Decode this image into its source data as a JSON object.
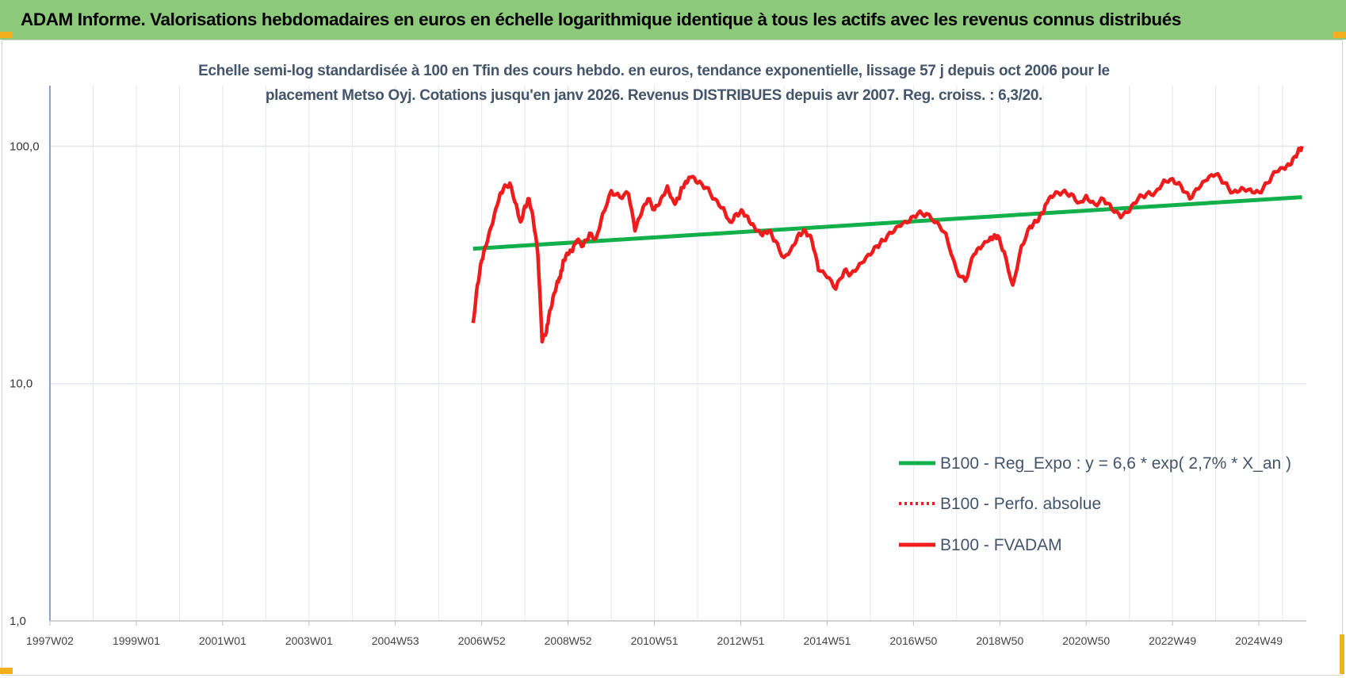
{
  "banner": {
    "title": "ADAM Informe. Valorisations hebdomadaires en euros en échelle logarithmique identique à tous les actifs avec les revenus connus distribués"
  },
  "colors": {
    "banner_bg": "#8dc97a",
    "corner_marks": "#f2b01e",
    "fvadam": "#ee1c1c",
    "regression": "#12b04a",
    "perfo": "#ee1c1c",
    "axis": "#4472c4",
    "grid": "#e3e7ee"
  },
  "chart_data": {
    "type": "line",
    "title_lines": [
      "Echelle semi-log standardisée à 100 en Tfin des cours hebdo. en euros, tendance exponentielle, lissage 57 j depuis oct 2006 pour le",
      "placement Metso Oyj. Cotations jusqu'en janv 2026. Revenus DISTRIBUES depuis avr 2007. Reg. croiss. : 6,3/20."
    ],
    "y_scale": "log",
    "ylim": [
      1,
      180
    ],
    "y_ticks": [
      {
        "value": 1,
        "label": "1,0"
      },
      {
        "value": 10,
        "label": "10,0"
      },
      {
        "value": 100,
        "label": "100,0"
      }
    ],
    "xlim": [
      1997.0,
      2026.1
    ],
    "x_ticks": [
      {
        "value": 1997.0,
        "label": "1997W02"
      },
      {
        "value": 1999.0,
        "label": "1999W01"
      },
      {
        "value": 2001.0,
        "label": "2001W01"
      },
      {
        "value": 2003.0,
        "label": "2003W01"
      },
      {
        "value": 2005.0,
        "label": "2004W53"
      },
      {
        "value": 2007.0,
        "label": "2006W52"
      },
      {
        "value": 2009.0,
        "label": "2008W52"
      },
      {
        "value": 2011.0,
        "label": "2010W51"
      },
      {
        "value": 2013.0,
        "label": "2012W51"
      },
      {
        "value": 2015.0,
        "label": "2014W51"
      },
      {
        "value": 2017.0,
        "label": "2016W50"
      },
      {
        "value": 2019.0,
        "label": "2018W50"
      },
      {
        "value": 2021.0,
        "label": "2020W50"
      },
      {
        "value": 2023.0,
        "label": "2022W49"
      },
      {
        "value": 2025.0,
        "label": "2024W49"
      }
    ],
    "grid": true,
    "legend_position": "right-middle",
    "legend": [
      {
        "name": "B100 - Reg_Expo : y = 6,6 * exp( 2,7% *  X_an )",
        "style": "solid-green"
      },
      {
        "name": "B100 - Perfo. absolue",
        "style": "dotted-red"
      },
      {
        "name": "B100 - FVADAM",
        "style": "solid-red"
      }
    ],
    "series": [
      {
        "name": "B100 - Reg_Expo : y = 6,6 * exp( 2,7% *  X_an )",
        "x": [
          2006.8,
          2026.0
        ],
        "y": [
          37,
          61
        ]
      },
      {
        "name": "B100 - Perfo. absolue",
        "x": [],
        "y": []
      },
      {
        "name": "B100 - FVADAM",
        "x": [
          2006.8,
          2006.9,
          2007.0,
          2007.1,
          2007.25,
          2007.4,
          2007.5,
          2007.65,
          2007.8,
          2007.9,
          2008.0,
          2008.1,
          2008.2,
          2008.3,
          2008.4,
          2008.5,
          2008.55,
          2008.65,
          2008.75,
          2008.8,
          2008.85,
          2008.9,
          2009.0,
          2009.1,
          2009.2,
          2009.35,
          2009.5,
          2009.65,
          2009.8,
          2010.0,
          2010.2,
          2010.4,
          2010.55,
          2010.7,
          2010.85,
          2011.0,
          2011.15,
          2011.3,
          2011.45,
          2011.55,
          2011.65,
          2011.75,
          2011.85,
          2012.0,
          2012.2,
          2012.4,
          2012.6,
          2012.75,
          2012.9,
          2013.05,
          2013.2,
          2013.35,
          2013.5,
          2013.65,
          2013.8,
          2014.0,
          2014.2,
          2014.35,
          2014.5,
          2014.65,
          2014.8,
          2015.0,
          2015.2,
          2015.4,
          2015.55,
          2015.75,
          2015.95,
          2016.15,
          2016.3,
          2016.5,
          2016.7,
          2016.9,
          2017.1,
          2017.3,
          2017.55,
          2017.75,
          2018.0,
          2018.2,
          2018.4,
          2018.55,
          2018.75,
          2018.85,
          2018.95,
          2019.1,
          2019.3,
          2019.5,
          2019.7,
          2019.85,
          2020.0,
          2020.1,
          2020.25,
          2020.45,
          2020.65,
          2020.85,
          2021.0,
          2021.2,
          2021.4,
          2021.6,
          2021.8,
          2022.0,
          2022.2,
          2022.4,
          2022.6,
          2022.8,
          2023.0,
          2023.2,
          2023.4,
          2023.6,
          2023.8,
          2024.0,
          2024.2,
          2024.4,
          2024.6,
          2024.8,
          2025.0,
          2025.2,
          2025.4,
          2025.6,
          2025.75,
          2025.9,
          2026.0
        ],
        "y": [
          18,
          26,
          33,
          38,
          47,
          60,
          66,
          70,
          57,
          48,
          56,
          60,
          48,
          35,
          15,
          16.5,
          19,
          23,
          27,
          28,
          30,
          33,
          35,
          36,
          40,
          38,
          43,
          41,
          52,
          65,
          61,
          63,
          44,
          52,
          60,
          54,
          60,
          68,
          58,
          60,
          67,
          70,
          74,
          70,
          67,
          60,
          55,
          48,
          52,
          53,
          48,
          44,
          42,
          44,
          40,
          34,
          38,
          43,
          44,
          40,
          30,
          28,
          25,
          30,
          29,
          32,
          35,
          38,
          40,
          43,
          46,
          48,
          52,
          52,
          48,
          43,
          30,
          27,
          35,
          37,
          40,
          41,
          42,
          36,
          26,
          38,
          46,
          48,
          52,
          58,
          62,
          64,
          63,
          58,
          62,
          57,
          60,
          54,
          50,
          53,
          60,
          63,
          64,
          72,
          73,
          68,
          60,
          66,
          72,
          76,
          70,
          64,
          67,
          66,
          64,
          70,
          78,
          80,
          84,
          94,
          100
        ]
      }
    ]
  }
}
